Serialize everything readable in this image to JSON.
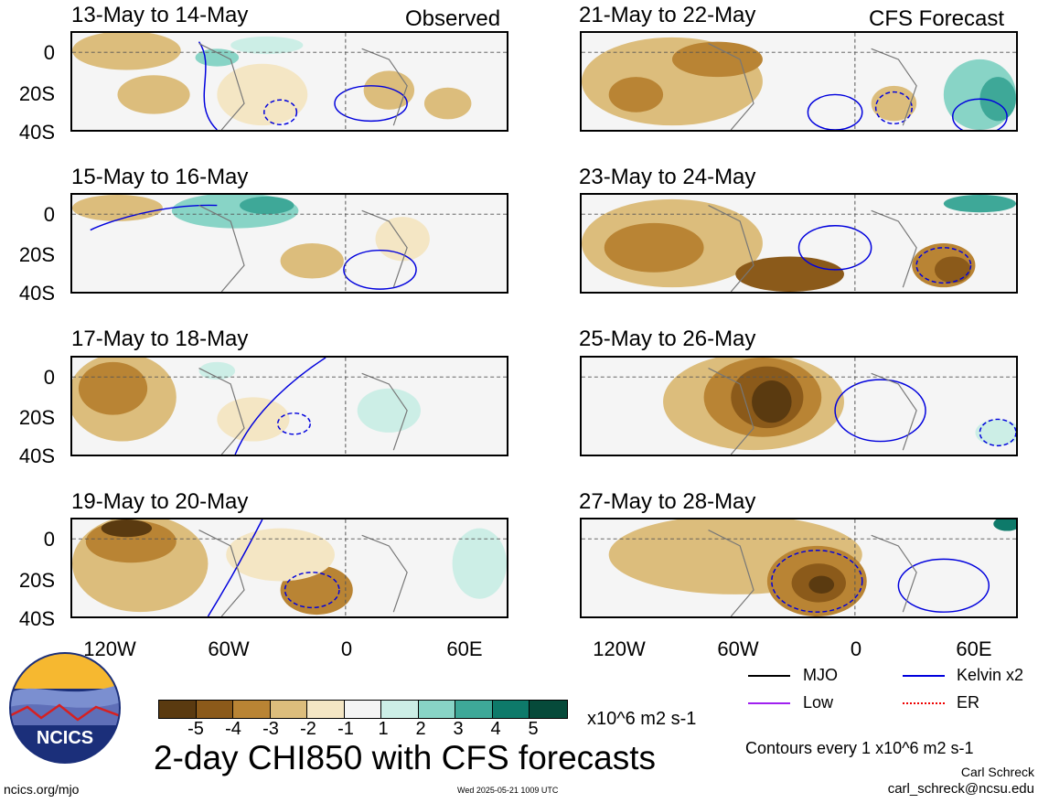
{
  "header": {
    "left_corner": "Observed",
    "right_corner": "CFS Forecast"
  },
  "panels": {
    "left": [
      {
        "title": "13-May to 14-May"
      },
      {
        "title": "15-May to 16-May"
      },
      {
        "title": "17-May to 18-May"
      },
      {
        "title": "19-May to 20-May"
      }
    ],
    "right": [
      {
        "title": "21-May to 22-May"
      },
      {
        "title": "23-May to 24-May"
      },
      {
        "title": "25-May to 26-May"
      },
      {
        "title": "27-May to 28-May"
      }
    ]
  },
  "axes": {
    "lat_labels": [
      "0",
      "20S",
      "40S"
    ],
    "lon_labels": [
      "120W",
      "60W",
      "0",
      "60E"
    ]
  },
  "colorbar": {
    "colors": [
      "#5a3a10",
      "#8b5a1a",
      "#b98434",
      "#dcbd7c",
      "#f4e6c4",
      "#f5f5f5",
      "#cceee6",
      "#88d4c6",
      "#3ea898",
      "#0e7a6a",
      "#064a3a"
    ],
    "ticks": [
      "-5",
      "-4",
      "-3",
      "-2",
      "-1",
      "1",
      "2",
      "3",
      "4",
      "5"
    ],
    "units": "x10^6 m2 s-1"
  },
  "footer": {
    "main_title": "2-day CHI850 with CFS forecasts",
    "left_url": "ncics.org/mjo",
    "timestamp": "Wed 2025-05-21 1009 UTC",
    "contours_note": "Contours every 1 x10^6 m2 s-1",
    "author": "Carl Schreck",
    "email": "carl_schreck@ncsu.edu",
    "logo_text": "NCICS"
  },
  "legend": {
    "items": [
      {
        "label": "MJO",
        "color": "#000000",
        "style": "solid"
      },
      {
        "label": "Kelvin x2",
        "color": "#0000dd",
        "style": "solid"
      },
      {
        "label": "Low",
        "color": "#a020f0",
        "style": "solid"
      },
      {
        "label": "ER",
        "color": "#ee0000",
        "style": "dotted"
      }
    ]
  },
  "chart_data": {
    "type": "heatmap",
    "variable": "2-day CHI850",
    "xticks": [
      "120W",
      "60W",
      "0",
      "60E"
    ],
    "yticks": [
      "0",
      "20S",
      "40S"
    ],
    "color_levels": [
      -5,
      -4,
      -3,
      -2,
      -1,
      1,
      2,
      3,
      4,
      5
    ],
    "panel_periods": [
      "13-May to 14-May",
      "15-May to 16-May",
      "17-May to 18-May",
      "19-May to 20-May",
      "21-May to 22-May",
      "23-May to 24-May",
      "25-May to 26-May",
      "27-May to 28-May"
    ]
  }
}
